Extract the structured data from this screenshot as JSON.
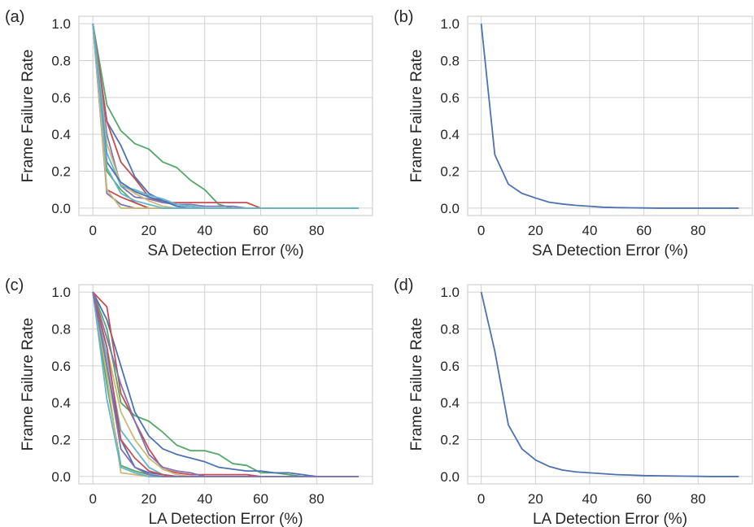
{
  "colors": {
    "blue": "#4c72b0",
    "green": "#55a868",
    "red": "#c44e52",
    "purple": "#8172b2",
    "yellow": "#ccb974",
    "cyan": "#64b5cd",
    "grid": "#d0d0d0",
    "frame": "#d0d0d0"
  },
  "chart_data": [
    {
      "type": "line",
      "panel_label": "(a)",
      "xlabel": "SA Detection Error (%)",
      "ylabel": "Frame Failure Rate",
      "xticks": [
        "0",
        "20",
        "40",
        "60",
        "80"
      ],
      "yticks": [
        "0.0",
        "0.2",
        "0.4",
        "0.6",
        "0.8",
        "1.0"
      ],
      "xlim": [
        -5,
        100
      ],
      "ylim": [
        -0.04,
        1.04
      ],
      "grid": true,
      "x": [
        0,
        5,
        10,
        15,
        20,
        25,
        30,
        35,
        40,
        45,
        50,
        55,
        60,
        65,
        70,
        75,
        80,
        85,
        90,
        95
      ],
      "series": [
        {
          "color": "green",
          "values": [
            1.0,
            0.56,
            0.42,
            0.35,
            0.32,
            0.25,
            0.22,
            0.15,
            0.1,
            0.02,
            0.0,
            0.0,
            0.0,
            0.0,
            0.0,
            0.0,
            0.0,
            0.0,
            0.0,
            0.0
          ]
        },
        {
          "color": "blue",
          "values": [
            1.0,
            0.47,
            0.34,
            0.17,
            0.08,
            0.04,
            0.02,
            0.01,
            0.0,
            0.0,
            0.0,
            0.0,
            0.0,
            0.0,
            0.0,
            0.0,
            0.0,
            0.0,
            0.0,
            0.0
          ]
        },
        {
          "color": "red",
          "values": [
            1.0,
            0.47,
            0.25,
            0.16,
            0.06,
            0.03,
            0.03,
            0.03,
            0.03,
            0.03,
            0.03,
            0.03,
            0.0,
            0.0,
            0.0,
            0.0,
            0.0,
            0.0,
            0.0,
            0.0
          ]
        },
        {
          "color": "purple",
          "values": [
            1.0,
            0.4,
            0.12,
            0.06,
            0.05,
            0.03,
            0.02,
            0.02,
            0.01,
            0.01,
            0.01,
            0.0,
            0.0,
            0.0,
            0.0,
            0.0,
            0.0,
            0.0,
            0.0,
            0.0
          ]
        },
        {
          "color": "yellow",
          "values": [
            1.0,
            0.35,
            0.13,
            0.08,
            0.04,
            0.01,
            0.0,
            0.0,
            0.0,
            0.0,
            0.0,
            0.0,
            0.0,
            0.0,
            0.0,
            0.0,
            0.0,
            0.0,
            0.0,
            0.0
          ]
        },
        {
          "color": "cyan",
          "values": [
            1.0,
            0.3,
            0.12,
            0.1,
            0.07,
            0.05,
            0.02,
            0.01,
            0.0,
            0.0,
            0.0,
            0.0,
            0.0,
            0.0,
            0.0,
            0.0,
            0.0,
            0.0,
            0.0,
            0.0
          ]
        },
        {
          "color": "blue",
          "values": [
            1.0,
            0.25,
            0.14,
            0.09,
            0.06,
            0.04,
            0.01,
            0.0,
            0.0,
            0.0,
            0.0,
            0.0,
            0.0,
            0.0,
            0.0,
            0.0,
            0.0,
            0.0,
            0.0,
            0.0
          ]
        },
        {
          "color": "green",
          "values": [
            1.0,
            0.2,
            0.1,
            0.03,
            0.0,
            0.0,
            0.0,
            0.0,
            0.0,
            0.0,
            0.0,
            0.0,
            0.0,
            0.0,
            0.0,
            0.0,
            0.0,
            0.0,
            0.0,
            0.0
          ]
        },
        {
          "color": "red",
          "values": [
            1.0,
            0.1,
            0.06,
            0.03,
            0.0,
            0.0,
            0.0,
            0.0,
            0.0,
            0.0,
            0.0,
            0.0,
            0.0,
            0.0,
            0.0,
            0.0,
            0.0,
            0.0,
            0.0,
            0.0
          ]
        },
        {
          "color": "purple",
          "values": [
            1.0,
            0.08,
            0.02,
            0.0,
            0.0,
            0.0,
            0.0,
            0.0,
            0.0,
            0.0,
            0.0,
            0.0,
            0.0,
            0.0,
            0.0,
            0.0,
            0.0,
            0.0,
            0.0,
            0.0
          ]
        },
        {
          "color": "yellow",
          "values": [
            1.0,
            0.1,
            0.0,
            0.0,
            0.0,
            0.0,
            0.0,
            0.0,
            0.0,
            0.0,
            0.0,
            0.0,
            0.0,
            0.0,
            0.0,
            0.0,
            0.0,
            0.0,
            0.0,
            0.0
          ]
        },
        {
          "color": "cyan",
          "values": [
            1.0,
            0.22,
            0.08,
            0.04,
            0.02,
            0.0,
            0.0,
            0.0,
            0.0,
            0.0,
            0.0,
            0.0,
            0.0,
            0.0,
            0.0,
            0.0,
            0.0,
            0.0,
            0.0,
            0.0
          ]
        }
      ]
    },
    {
      "type": "line",
      "panel_label": "(b)",
      "xlabel": "SA Detection Error (%)",
      "ylabel": "Frame Failure Rate",
      "xticks": [
        "0",
        "20",
        "40",
        "60",
        "80"
      ],
      "yticks": [
        "0.0",
        "0.2",
        "0.4",
        "0.6",
        "0.8",
        "1.0"
      ],
      "xlim": [
        -5,
        100
      ],
      "ylim": [
        -0.04,
        1.04
      ],
      "grid": true,
      "x": [
        0,
        5,
        10,
        15,
        20,
        25,
        30,
        35,
        40,
        45,
        50,
        55,
        60,
        65,
        70,
        75,
        80,
        85,
        90,
        95
      ],
      "series": [
        {
          "color": "blue",
          "values": [
            1.0,
            0.29,
            0.13,
            0.08,
            0.055,
            0.032,
            0.022,
            0.015,
            0.01,
            0.005,
            0.003,
            0.002,
            0.001,
            0.0,
            0.0,
            0.0,
            0.0,
            0.0,
            0.0,
            0.0
          ]
        }
      ]
    },
    {
      "type": "line",
      "panel_label": "(c)",
      "xlabel": "LA Detection Error (%)",
      "ylabel": "Frame Failure Rate",
      "xticks": [
        "0",
        "20",
        "40",
        "60",
        "80"
      ],
      "yticks": [
        "0.0",
        "0.2",
        "0.4",
        "0.6",
        "0.8",
        "1.0"
      ],
      "xlim": [
        -5,
        100
      ],
      "ylim": [
        -0.04,
        1.04
      ],
      "grid": true,
      "x": [
        0,
        5,
        10,
        15,
        20,
        25,
        30,
        35,
        40,
        45,
        50,
        55,
        60,
        65,
        70,
        75,
        80,
        85,
        90,
        95
      ],
      "series": [
        {
          "color": "green",
          "values": [
            1.0,
            0.8,
            0.4,
            0.33,
            0.3,
            0.24,
            0.17,
            0.14,
            0.14,
            0.12,
            0.07,
            0.06,
            0.02,
            0.02,
            0.01,
            0.0,
            0.0,
            0.0,
            0.0,
            0.0
          ]
        },
        {
          "color": "blue",
          "values": [
            1.0,
            0.85,
            0.6,
            0.35,
            0.22,
            0.15,
            0.12,
            0.1,
            0.08,
            0.05,
            0.04,
            0.03,
            0.03,
            0.02,
            0.02,
            0.01,
            0.0,
            0.0,
            0.0,
            0.0
          ]
        },
        {
          "color": "red",
          "values": [
            1.0,
            0.92,
            0.45,
            0.3,
            0.15,
            0.04,
            0.02,
            0.01,
            0.01,
            0.01,
            0.01,
            0.01,
            0.0,
            0.0,
            0.0,
            0.0,
            0.0,
            0.0,
            0.0,
            0.0
          ]
        },
        {
          "color": "purple",
          "values": [
            1.0,
            0.75,
            0.5,
            0.3,
            0.12,
            0.05,
            0.03,
            0.02,
            0.0,
            0.0,
            0.0,
            0.0,
            0.0,
            0.0,
            0.0,
            0.0,
            0.0,
            0.0,
            0.0,
            0.0
          ]
        },
        {
          "color": "yellow",
          "values": [
            1.0,
            0.7,
            0.35,
            0.2,
            0.1,
            0.04,
            0.01,
            0.0,
            0.0,
            0.0,
            0.0,
            0.0,
            0.0,
            0.0,
            0.0,
            0.0,
            0.0,
            0.0,
            0.0,
            0.0
          ]
        },
        {
          "color": "cyan",
          "values": [
            1.0,
            0.65,
            0.25,
            0.15,
            0.05,
            0.01,
            0.0,
            0.0,
            0.0,
            0.0,
            0.0,
            0.0,
            0.0,
            0.0,
            0.0,
            0.0,
            0.0,
            0.0,
            0.0,
            0.0
          ]
        },
        {
          "color": "blue",
          "values": [
            1.0,
            0.6,
            0.2,
            0.05,
            0.02,
            0.01,
            0.0,
            0.0,
            0.0,
            0.0,
            0.0,
            0.0,
            0.0,
            0.0,
            0.0,
            0.0,
            0.0,
            0.0,
            0.0,
            0.0
          ]
        },
        {
          "color": "green",
          "values": [
            1.0,
            0.5,
            0.06,
            0.03,
            0.01,
            0.0,
            0.0,
            0.0,
            0.0,
            0.0,
            0.0,
            0.0,
            0.0,
            0.0,
            0.0,
            0.0,
            0.0,
            0.0,
            0.0,
            0.0
          ]
        },
        {
          "color": "red",
          "values": [
            1.0,
            0.7,
            0.2,
            0.1,
            0.03,
            0.01,
            0.0,
            0.0,
            0.0,
            0.0,
            0.0,
            0.0,
            0.0,
            0.0,
            0.0,
            0.0,
            0.0,
            0.0,
            0.0,
            0.0
          ]
        },
        {
          "color": "yellow",
          "values": [
            1.0,
            0.55,
            0.02,
            0.01,
            0.0,
            0.0,
            0.0,
            0.0,
            0.0,
            0.0,
            0.0,
            0.0,
            0.0,
            0.0,
            0.0,
            0.0,
            0.0,
            0.0,
            0.0,
            0.0
          ]
        },
        {
          "color": "cyan",
          "values": [
            1.0,
            0.42,
            0.05,
            0.02,
            0.0,
            0.0,
            0.0,
            0.0,
            0.0,
            0.0,
            0.0,
            0.0,
            0.0,
            0.0,
            0.0,
            0.0,
            0.0,
            0.0,
            0.0,
            0.0
          ]
        },
        {
          "color": "purple",
          "values": [
            1.0,
            0.6,
            0.15,
            0.05,
            0.01,
            0.0,
            0.0,
            0.0,
            0.0,
            0.0,
            0.0,
            0.0,
            0.0,
            0.0,
            0.0,
            0.0,
            0.0,
            0.0,
            0.0,
            0.0
          ]
        }
      ]
    },
    {
      "type": "line",
      "panel_label": "(d)",
      "xlabel": "LA Detection Error (%)",
      "ylabel": "Frame Failure Rate",
      "xticks": [
        "0",
        "20",
        "40",
        "60",
        "80"
      ],
      "yticks": [
        "0.0",
        "0.2",
        "0.4",
        "0.6",
        "0.8",
        "1.0"
      ],
      "xlim": [
        -5,
        100
      ],
      "ylim": [
        -0.04,
        1.04
      ],
      "grid": true,
      "x": [
        0,
        5,
        10,
        15,
        20,
        25,
        30,
        35,
        40,
        45,
        50,
        55,
        60,
        65,
        70,
        75,
        80,
        85,
        90,
        95
      ],
      "series": [
        {
          "color": "blue",
          "values": [
            1.0,
            0.68,
            0.28,
            0.15,
            0.09,
            0.055,
            0.035,
            0.025,
            0.02,
            0.015,
            0.01,
            0.008,
            0.005,
            0.004,
            0.003,
            0.002,
            0.001,
            0.0,
            0.0,
            0.0
          ]
        }
      ]
    }
  ]
}
